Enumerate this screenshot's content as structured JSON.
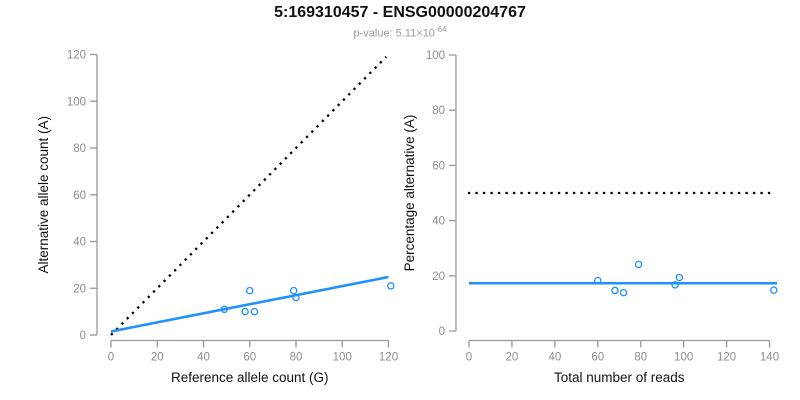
{
  "header": {
    "title": "5:169310457 - ENSG00000204767",
    "subtitle_base": "p-value: 5.11×10",
    "subtitle_exponent": "-64"
  },
  "colors": {
    "accent_blue": "#1E90FF",
    "line_black": "#000000",
    "axis_gray": "#999999",
    "tick_label_gray": "#8c8c8c",
    "axis_title_color": "#111111"
  },
  "chart_data": [
    {
      "type": "scatter",
      "name": "allele-count-plot",
      "xlabel": "Reference allele count (G)",
      "ylabel": "Alternative allele count (A)",
      "xlim": [
        0,
        120
      ],
      "ylim": [
        0,
        120
      ],
      "xticks": [
        0,
        20,
        40,
        60,
        80,
        100,
        120
      ],
      "yticks": [
        0,
        20,
        40,
        60,
        80,
        100,
        120
      ],
      "grid": false,
      "point_color": "#1E90FF",
      "points": [
        [
          49,
          11
        ],
        [
          58,
          10
        ],
        [
          62,
          10
        ],
        [
          60,
          19
        ],
        [
          80,
          16
        ],
        [
          79,
          19
        ],
        [
          121,
          21
        ]
      ],
      "lines": [
        {
          "name": "identity-line",
          "style": "dotted",
          "color": "#000000",
          "x": [
            0,
            119
          ],
          "y": [
            0,
            119
          ]
        },
        {
          "name": "regression-line",
          "style": "solid",
          "color": "#1E90FF",
          "x": [
            0,
            120
          ],
          "y": [
            1.5,
            24.8
          ]
        }
      ]
    },
    {
      "type": "scatter",
      "name": "percentage-plot",
      "xlabel": "Total number of reads",
      "ylabel": "Percentage alternative (A)",
      "xlim": [
        0,
        140
      ],
      "ylim": [
        0,
        100
      ],
      "xticks": [
        0,
        20,
        40,
        60,
        80,
        100,
        120,
        140
      ],
      "yticks": [
        0,
        20,
        40,
        60,
        80,
        100
      ],
      "grid": false,
      "point_color": "#1E90FF",
      "points": [
        [
          60,
          18.3
        ],
        [
          68,
          14.7
        ],
        [
          72,
          13.9
        ],
        [
          79,
          24.1
        ],
        [
          96,
          16.7
        ],
        [
          98,
          19.4
        ],
        [
          142,
          14.8
        ]
      ],
      "lines": [
        {
          "name": "fifty-percent-line",
          "style": "dotted",
          "color": "#000000",
          "x": [
            -0.5,
            141
          ],
          "y": [
            50,
            50
          ]
        },
        {
          "name": "mean-percentage-line",
          "style": "solid",
          "color": "#1E90FF",
          "x": [
            0,
            143.5
          ],
          "y": [
            17.3,
            17.3
          ]
        }
      ]
    }
  ]
}
